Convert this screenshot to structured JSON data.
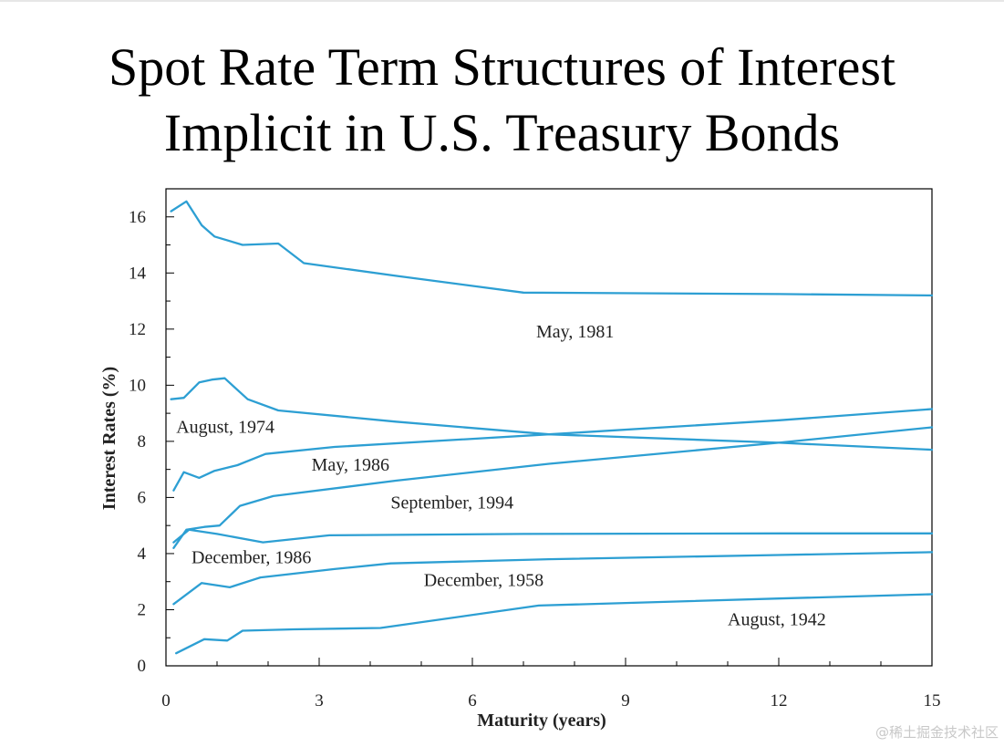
{
  "title_lines": [
    "Spot Rate Term Structures of Interest",
    "Implicit in U.S. Treasury Bonds"
  ],
  "watermark": "@稀土掘金技术社区",
  "colors": {
    "line": "#2d9fd3",
    "axis": "#000000",
    "text": "#222222"
  },
  "chart_data": {
    "type": "line",
    "title": "Spot Rate Term Structures of Interest Implicit in U.S. Treasury Bonds",
    "xlabel": "Maturity (years)",
    "ylabel": "Interest Rates (%)",
    "xlim": [
      0,
      15
    ],
    "ylim": [
      0,
      17
    ],
    "xticks": [
      0,
      3,
      6,
      9,
      12,
      15
    ],
    "yticks": [
      0,
      2,
      4,
      6,
      8,
      10,
      12,
      14,
      16
    ],
    "grid": false,
    "series": [
      {
        "name": "May, 1981",
        "points": [
          [
            0.1,
            16.2
          ],
          [
            0.4,
            16.55
          ],
          [
            0.7,
            15.7
          ],
          [
            0.95,
            15.3
          ],
          [
            1.5,
            15.0
          ],
          [
            2.2,
            15.05
          ],
          [
            2.7,
            14.35
          ],
          [
            4.5,
            13.9
          ],
          [
            7.0,
            13.3
          ],
          [
            12,
            13.25
          ],
          [
            15,
            13.2
          ]
        ]
      },
      {
        "name": "August, 1974",
        "points": [
          [
            0.1,
            9.5
          ],
          [
            0.35,
            9.55
          ],
          [
            0.65,
            10.1
          ],
          [
            0.9,
            10.2
          ],
          [
            1.15,
            10.25
          ],
          [
            1.6,
            9.5
          ],
          [
            2.2,
            9.1
          ],
          [
            4.5,
            8.7
          ],
          [
            7.5,
            8.25
          ],
          [
            12,
            7.95
          ],
          [
            15,
            7.7
          ]
        ]
      },
      {
        "name": "May, 1986",
        "points": [
          [
            0.15,
            6.25
          ],
          [
            0.35,
            6.9
          ],
          [
            0.65,
            6.7
          ],
          [
            0.95,
            6.95
          ],
          [
            1.4,
            7.15
          ],
          [
            1.95,
            7.55
          ],
          [
            3.3,
            7.8
          ],
          [
            7.5,
            8.25
          ],
          [
            12,
            8.75
          ],
          [
            15,
            9.15
          ]
        ]
      },
      {
        "name": "September, 1994",
        "points": [
          [
            0.15,
            4.2
          ],
          [
            0.4,
            4.85
          ],
          [
            0.75,
            4.95
          ],
          [
            1.05,
            5.0
          ],
          [
            1.45,
            5.7
          ],
          [
            2.1,
            6.05
          ],
          [
            4.5,
            6.6
          ],
          [
            7.5,
            7.2
          ],
          [
            12,
            7.95
          ],
          [
            15,
            8.5
          ]
        ]
      },
      {
        "name": "December, 1986",
        "points": [
          [
            0.15,
            4.4
          ],
          [
            0.45,
            4.85
          ],
          [
            1.0,
            4.7
          ],
          [
            1.9,
            4.4
          ],
          [
            3.2,
            4.65
          ],
          [
            7.0,
            4.7
          ],
          [
            12,
            4.72
          ],
          [
            15,
            4.72
          ]
        ]
      },
      {
        "name": "December, 1958",
        "points": [
          [
            0.15,
            2.2
          ],
          [
            0.7,
            2.95
          ],
          [
            1.25,
            2.8
          ],
          [
            1.85,
            3.15
          ],
          [
            3.3,
            3.45
          ],
          [
            4.4,
            3.65
          ],
          [
            7.5,
            3.8
          ],
          [
            12,
            3.95
          ],
          [
            15,
            4.05
          ]
        ]
      },
      {
        "name": "August, 1942",
        "points": [
          [
            0.2,
            0.45
          ],
          [
            0.75,
            0.95
          ],
          [
            1.2,
            0.9
          ],
          [
            1.5,
            1.25
          ],
          [
            2.5,
            1.3
          ],
          [
            4.2,
            1.35
          ],
          [
            7.3,
            2.15
          ],
          [
            12,
            2.4
          ],
          [
            15,
            2.55
          ]
        ]
      }
    ],
    "annotations": [
      {
        "text": "May, 1981",
        "x": 7.25,
        "y": 11.7
      },
      {
        "text": "August, 1974",
        "x": 0.2,
        "y": 8.3
      },
      {
        "text": "May, 1986",
        "x": 2.85,
        "y": 6.95
      },
      {
        "text": "September, 1994",
        "x": 4.4,
        "y": 5.6
      },
      {
        "text": "December, 1986",
        "x": 0.5,
        "y": 3.65
      },
      {
        "text": "December, 1958",
        "x": 5.05,
        "y": 2.85
      },
      {
        "text": "August, 1942",
        "x": 11.0,
        "y": 1.45
      }
    ]
  }
}
